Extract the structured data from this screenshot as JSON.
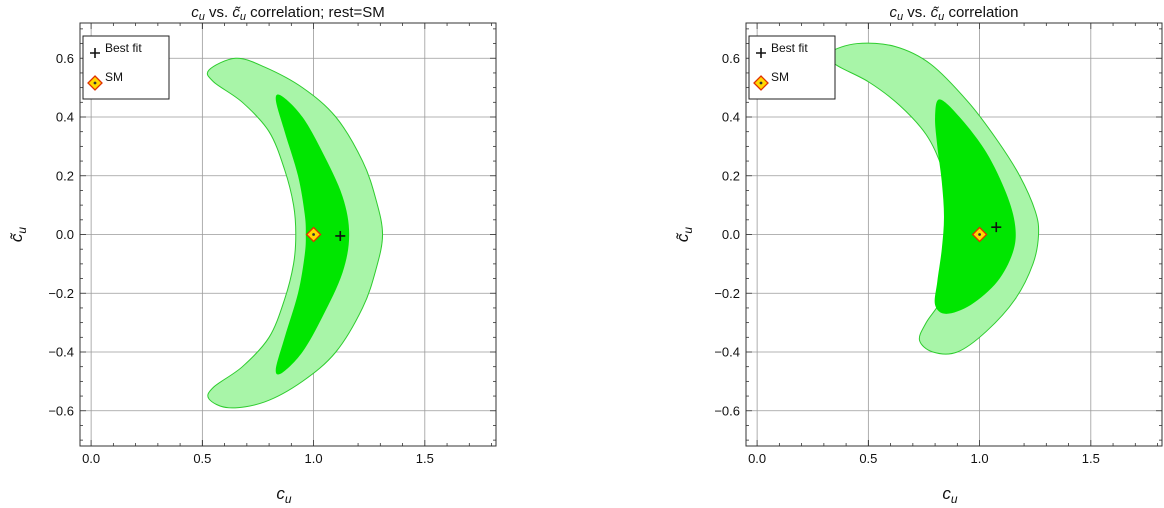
{
  "colors": {
    "inner_region": "#00e600",
    "outer_region": "#a8f5a8",
    "region_edge": "#2ecc2e",
    "sm_fill": "#ffd700",
    "sm_edge": "#e03000",
    "grid": "#9a9a9a"
  },
  "chart_data": [
    {
      "type": "contour",
      "title": "c_u vs. c̃_u correlation; rest=SM",
      "title_parts": {
        "lead": "c",
        "lead_sub": "u",
        "mid": " vs. ",
        "tilde": "c̃",
        "tilde_sub": "u",
        "tail": " correlation; rest=SM"
      },
      "xlabel": "c_u",
      "ylabel": "c̃_u",
      "xlim": [
        -0.05,
        1.82
      ],
      "ylim": [
        -0.72,
        0.72
      ],
      "xticks": [
        0.0,
        0.5,
        1.0,
        1.5
      ],
      "yticks": [
        -0.6,
        -0.4,
        -0.2,
        0.0,
        0.2,
        0.4,
        0.6
      ],
      "xtick_labels": [
        "0.0",
        "0.5",
        "1.0",
        "1.5"
      ],
      "ytick_labels": [
        "−0.6",
        "−0.4",
        "−0.2",
        "0.0",
        "0.2",
        "0.4",
        "0.6"
      ],
      "grid": true,
      "legend_position": "top-left",
      "legend": [
        "Best fit",
        "SM"
      ],
      "best_fit": {
        "x": 1.12,
        "y": -0.005
      },
      "sm_point": {
        "x": 1.0,
        "y": 0.0
      },
      "regions": {
        "outer_68_95": [
          [
            0.65,
            0.6
          ],
          [
            0.78,
            0.57
          ],
          [
            0.95,
            0.5
          ],
          [
            1.1,
            0.4
          ],
          [
            1.22,
            0.25
          ],
          [
            1.28,
            0.12
          ],
          [
            1.31,
            0.0
          ],
          [
            1.28,
            -0.12
          ],
          [
            1.22,
            -0.25
          ],
          [
            1.1,
            -0.4
          ],
          [
            0.95,
            -0.5
          ],
          [
            0.78,
            -0.57
          ],
          [
            0.62,
            -0.59
          ],
          [
            0.53,
            -0.56
          ],
          [
            0.55,
            -0.52
          ],
          [
            0.68,
            -0.45
          ],
          [
            0.8,
            -0.35
          ],
          [
            0.87,
            -0.22
          ],
          [
            0.91,
            -0.1
          ],
          [
            0.92,
            0.0
          ],
          [
            0.91,
            0.1
          ],
          [
            0.87,
            0.22
          ],
          [
            0.8,
            0.35
          ],
          [
            0.68,
            0.45
          ],
          [
            0.55,
            0.52
          ],
          [
            0.53,
            0.56
          ]
        ],
        "inner": [
          [
            0.86,
            0.47
          ],
          [
            0.95,
            0.4
          ],
          [
            1.04,
            0.28
          ],
          [
            1.13,
            0.13
          ],
          [
            1.16,
            0.0
          ],
          [
            1.13,
            -0.13
          ],
          [
            1.04,
            -0.28
          ],
          [
            0.95,
            -0.4
          ],
          [
            0.86,
            -0.47
          ],
          [
            0.83,
            -0.46
          ],
          [
            0.87,
            -0.35
          ],
          [
            0.93,
            -0.2
          ],
          [
            0.96,
            -0.07
          ],
          [
            0.965,
            0.0
          ],
          [
            0.96,
            0.07
          ],
          [
            0.93,
            0.2
          ],
          [
            0.87,
            0.35
          ],
          [
            0.83,
            0.46
          ]
        ]
      }
    },
    {
      "type": "contour",
      "title": "c_u vs. c̃_u correlation",
      "title_parts": {
        "lead": "c",
        "lead_sub": "u",
        "mid": " vs. ",
        "tilde": "c̃",
        "tilde_sub": "u",
        "tail": " correlation"
      },
      "xlabel": "c_u",
      "ylabel": "c̃_u",
      "xlim": [
        -0.05,
        1.82
      ],
      "ylim": [
        -0.72,
        0.72
      ],
      "xticks": [
        0.0,
        0.5,
        1.0,
        1.5
      ],
      "yticks": [
        -0.6,
        -0.4,
        -0.2,
        0.0,
        0.2,
        0.4,
        0.6
      ],
      "xtick_labels": [
        "0.0",
        "0.5",
        "1.0",
        "1.5"
      ],
      "ytick_labels": [
        "−0.6",
        "−0.4",
        "−0.2",
        "0.0",
        "0.2",
        "0.4",
        "0.6"
      ],
      "grid": true,
      "legend_position": "top-left",
      "legend": [
        "Best fit",
        "SM"
      ],
      "best_fit": {
        "x": 1.075,
        "y": 0.025
      },
      "sm_point": {
        "x": 1.0,
        "y": 0.0
      },
      "regions": {
        "outer_68_95": [
          [
            0.45,
            0.65
          ],
          [
            0.62,
            0.64
          ],
          [
            0.78,
            0.58
          ],
          [
            0.95,
            0.45
          ],
          [
            1.08,
            0.32
          ],
          [
            1.18,
            0.2
          ],
          [
            1.25,
            0.08
          ],
          [
            1.265,
            0.0
          ],
          [
            1.24,
            -0.1
          ],
          [
            1.16,
            -0.22
          ],
          [
            1.03,
            -0.33
          ],
          [
            0.9,
            -0.4
          ],
          [
            0.79,
            -0.4
          ],
          [
            0.73,
            -0.36
          ],
          [
            0.76,
            -0.3
          ],
          [
            0.83,
            -0.22
          ],
          [
            0.86,
            -0.12
          ],
          [
            0.88,
            0.0
          ],
          [
            0.87,
            0.12
          ],
          [
            0.83,
            0.23
          ],
          [
            0.76,
            0.34
          ],
          [
            0.64,
            0.44
          ],
          [
            0.5,
            0.52
          ],
          [
            0.35,
            0.58
          ],
          [
            0.33,
            0.62
          ]
        ],
        "inner": [
          [
            0.82,
            0.46
          ],
          [
            0.91,
            0.4
          ],
          [
            1.03,
            0.28
          ],
          [
            1.12,
            0.14
          ],
          [
            1.16,
            0.03
          ],
          [
            1.15,
            -0.06
          ],
          [
            1.08,
            -0.16
          ],
          [
            0.96,
            -0.24
          ],
          [
            0.85,
            -0.27
          ],
          [
            0.8,
            -0.24
          ],
          [
            0.81,
            -0.16
          ],
          [
            0.83,
            -0.05
          ],
          [
            0.84,
            0.06
          ],
          [
            0.83,
            0.18
          ],
          [
            0.81,
            0.3
          ],
          [
            0.8,
            0.4
          ]
        ]
      }
    }
  ]
}
